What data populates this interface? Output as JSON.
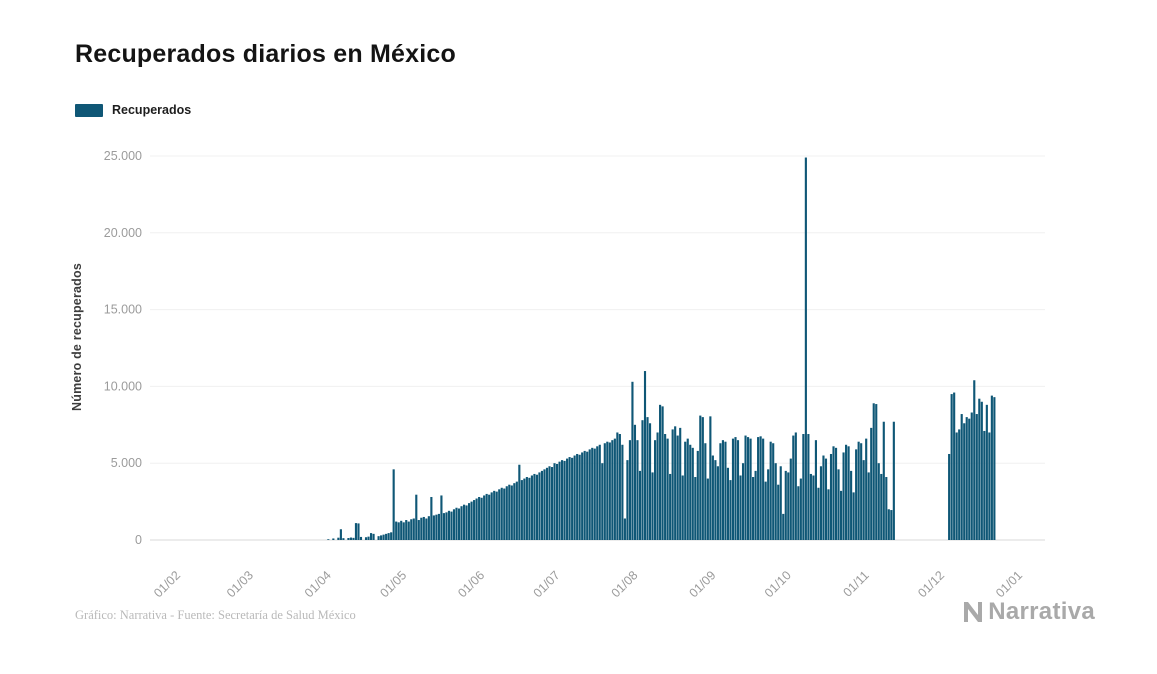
{
  "header": {
    "title": "Recuperados diarios en México"
  },
  "legend": {
    "label": "Recuperados",
    "swatch_color": "#0f5776"
  },
  "footer": {
    "credit": "Gráfico: Narrativa - Fuente: Secretaría de Salud México",
    "brand": "Narrativa",
    "brand_icon": "narrativa-n-icon"
  },
  "chart_data": {
    "type": "bar",
    "title": "Recuperados diarios en México",
    "xlabel": "",
    "ylabel": "Número de recuperados",
    "ylim": [
      0,
      25000
    ],
    "grid": "horizontal",
    "legend_position": "top-left",
    "bar_color": "#0f5776",
    "y_ticks": [
      0,
      5000,
      10000,
      15000,
      20000,
      25000
    ],
    "y_tick_labels": [
      "0",
      "5.000",
      "10.000",
      "15.000",
      "20.000",
      "25.000"
    ],
    "x_tick_labels": [
      "01/02",
      "01/03",
      "01/04",
      "01/05",
      "01/06",
      "01/07",
      "01/08",
      "01/09",
      "01/10",
      "01/11",
      "01/12",
      "01/01"
    ],
    "x_tick_indices": [
      0,
      29,
      60,
      90,
      121,
      151,
      182,
      213,
      243,
      274,
      304,
      335
    ],
    "x_start_date": "01/02",
    "series": [
      {
        "name": "Recuperados",
        "values": [
          0,
          0,
          0,
          0,
          0,
          0,
          0,
          0,
          0,
          0,
          0,
          0,
          0,
          0,
          0,
          0,
          0,
          0,
          0,
          0,
          0,
          0,
          0,
          0,
          0,
          0,
          0,
          0,
          0,
          0,
          0,
          0,
          0,
          0,
          0,
          0,
          0,
          0,
          0,
          0,
          0,
          0,
          0,
          0,
          0,
          0,
          0,
          0,
          0,
          0,
          0,
          0,
          0,
          0,
          0,
          0,
          0,
          0,
          0,
          0,
          0,
          50,
          0,
          100,
          0,
          150,
          700,
          120,
          0,
          130,
          160,
          140,
          1100,
          1080,
          200,
          0,
          180,
          220,
          450,
          400,
          0,
          250,
          300,
          350,
          400,
          450,
          500,
          4600,
          1200,
          1150,
          1250,
          1150,
          1300,
          1200,
          1350,
          1400,
          2950,
          1300,
          1450,
          1500,
          1400,
          1550,
          2800,
          1600,
          1650,
          1700,
          2900,
          1750,
          1800,
          1900,
          1850,
          2000,
          2100,
          2050,
          2200,
          2300,
          2250,
          2400,
          2500,
          2600,
          2700,
          2800,
          2750,
          2900,
          3000,
          2950,
          3100,
          3200,
          3150,
          3300,
          3400,
          3350,
          3500,
          3600,
          3550,
          3700,
          3800,
          4900,
          3900,
          4000,
          4100,
          4050,
          4200,
          4300,
          4250,
          4400,
          4500,
          4600,
          4700,
          4800,
          4750,
          5000,
          4950,
          5100,
          5200,
          5150,
          5300,
          5400,
          5350,
          5500,
          5600,
          5550,
          5700,
          5800,
          5750,
          5900,
          6000,
          5950,
          6100,
          6200,
          5000,
          6300,
          6400,
          6350,
          6500,
          6600,
          7000,
          6900,
          6200,
          1400,
          5200,
          6500,
          10300,
          7500,
          6500,
          4500,
          7800,
          11000,
          8000,
          7600,
          4400,
          6500,
          7000,
          8800,
          8700,
          6900,
          6600,
          4300,
          7200,
          7400,
          6800,
          7300,
          4200,
          6400,
          6600,
          6200,
          6000,
          4100,
          5800,
          8100,
          8000,
          6300,
          4000,
          8050,
          5500,
          5200,
          4800,
          6300,
          6500,
          6400,
          4700,
          3900,
          6600,
          6700,
          6500,
          4200,
          5000,
          6800,
          6700,
          6600,
          4100,
          4500,
          6700,
          6750,
          6600,
          3800,
          4600,
          6400,
          6300,
          5000,
          3600,
          4800,
          1700,
          4500,
          4400,
          5300,
          6800,
          7000,
          3500,
          4000,
          6900,
          24900,
          6900,
          4300,
          4200,
          6500,
          3400,
          4800,
          5500,
          5300,
          3300,
          5600,
          6100,
          6000,
          4600,
          3200,
          5700,
          6200,
          6100,
          4500,
          3100,
          5900,
          6400,
          6300,
          5200,
          6600,
          4400,
          7300,
          8900,
          8850,
          5000,
          4300,
          7700,
          4100,
          2000,
          1950,
          7700,
          0,
          0,
          0,
          0,
          0,
          0,
          0,
          0,
          0,
          0,
          0,
          0,
          0,
          0,
          0,
          0,
          0,
          0,
          0,
          0,
          0,
          5600,
          9500,
          9600,
          7000,
          7200,
          8200,
          7600,
          8000,
          7900,
          8300,
          10400,
          8200,
          9200,
          9000,
          7100,
          8800,
          7000,
          9400,
          9300,
          0,
          0,
          0,
          0,
          0,
          0,
          0,
          0,
          0
        ]
      }
    ]
  }
}
